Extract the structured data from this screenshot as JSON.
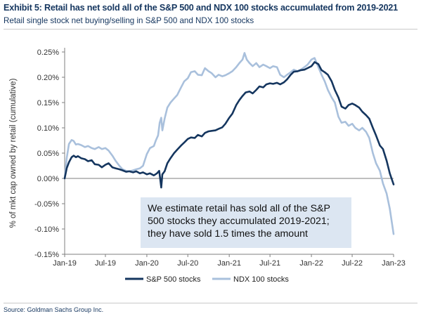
{
  "header": {
    "title": "Exhibit 5: Retail has net sold all of the S&P 500 and NDX 100 stocks accumulated from 2019-2021",
    "subtitle": "Retail single stock net buying/selling in S&P 500 and NDX 100 stocks"
  },
  "footer": {
    "source": "Source: Goldman Sachs Group Inc."
  },
  "chart_data": {
    "type": "line",
    "ylabel": "% of mkt cap owned by retail (cumulative)",
    "xlabel": "",
    "ylim": [
      -0.15,
      0.25
    ],
    "yticks": [
      -0.15,
      -0.1,
      -0.05,
      0.0,
      0.05,
      0.1,
      0.15,
      0.2,
      0.25
    ],
    "ytick_labels": [
      "-0.15%",
      "-0.10%",
      "-0.05%",
      "0.00%",
      "0.05%",
      "0.10%",
      "0.15%",
      "0.20%",
      "0.25%"
    ],
    "xlim": [
      "2019-01-01",
      "2023-01-01"
    ],
    "xticks": [
      "2019-01-01",
      "2019-07-01",
      "2020-01-01",
      "2020-07-01",
      "2021-01-01",
      "2021-07-01",
      "2022-01-01",
      "2022-07-01",
      "2023-01-01"
    ],
    "xtick_labels": [
      "Jan-19",
      "Jul-19",
      "Jan-20",
      "Jul-20",
      "Jan-21",
      "Jul-21",
      "Jan-22",
      "Jul-22",
      "Jan-23"
    ],
    "zero_line": true,
    "grid": false,
    "legend_position": "bottom",
    "annotation": {
      "lines": [
        "We estimate retail has sold all of the S&P",
        "500 stocks they accumulated 2019-2021;",
        "they have sold 1.5 times the amount"
      ],
      "background": "#dce6f2"
    },
    "series": [
      {
        "name": "S&P 500 stocks",
        "color": "#15365f",
        "points": [
          [
            "2019-01-01",
            0.0
          ],
          [
            "2019-01-10",
            0.02
          ],
          [
            "2019-01-20",
            0.032
          ],
          [
            "2019-02-01",
            0.042
          ],
          [
            "2019-02-10",
            0.045
          ],
          [
            "2019-02-20",
            0.042
          ],
          [
            "2019-03-01",
            0.044
          ],
          [
            "2019-03-15",
            0.04
          ],
          [
            "2019-04-01",
            0.038
          ],
          [
            "2019-04-15",
            0.034
          ],
          [
            "2019-05-01",
            0.036
          ],
          [
            "2019-05-15",
            0.028
          ],
          [
            "2019-06-01",
            0.027
          ],
          [
            "2019-06-15",
            0.022
          ],
          [
            "2019-07-01",
            0.027
          ],
          [
            "2019-07-15",
            0.03
          ],
          [
            "2019-08-01",
            0.022
          ],
          [
            "2019-08-15",
            0.02
          ],
          [
            "2019-09-01",
            0.018
          ],
          [
            "2019-09-15",
            0.016
          ],
          [
            "2019-10-01",
            0.013
          ],
          [
            "2019-10-15",
            0.014
          ],
          [
            "2019-11-01",
            0.012
          ],
          [
            "2019-11-15",
            0.014
          ],
          [
            "2019-12-01",
            0.01
          ],
          [
            "2019-12-15",
            0.012
          ],
          [
            "2020-01-01",
            0.008
          ],
          [
            "2020-01-15",
            0.01
          ],
          [
            "2020-02-01",
            0.006
          ],
          [
            "2020-02-15",
            0.01
          ],
          [
            "2020-02-25",
            0.015
          ],
          [
            "2020-03-01",
            -0.003
          ],
          [
            "2020-03-05",
            -0.018
          ],
          [
            "2020-03-10",
            0.008
          ],
          [
            "2020-03-20",
            0.014
          ],
          [
            "2020-04-01",
            0.03
          ],
          [
            "2020-04-15",
            0.04
          ],
          [
            "2020-05-01",
            0.05
          ],
          [
            "2020-05-15",
            0.057
          ],
          [
            "2020-06-01",
            0.065
          ],
          [
            "2020-06-15",
            0.071
          ],
          [
            "2020-07-01",
            0.078
          ],
          [
            "2020-07-15",
            0.081
          ],
          [
            "2020-08-01",
            0.08
          ],
          [
            "2020-08-15",
            0.086
          ],
          [
            "2020-09-01",
            0.083
          ],
          [
            "2020-09-15",
            0.09
          ],
          [
            "2020-10-01",
            0.093
          ],
          [
            "2020-10-15",
            0.094
          ],
          [
            "2020-11-01",
            0.095
          ],
          [
            "2020-11-15",
            0.098
          ],
          [
            "2020-12-01",
            0.101
          ],
          [
            "2020-12-15",
            0.108
          ],
          [
            "2021-01-01",
            0.12
          ],
          [
            "2021-01-15",
            0.128
          ],
          [
            "2021-02-01",
            0.145
          ],
          [
            "2021-02-15",
            0.155
          ],
          [
            "2021-03-01",
            0.163
          ],
          [
            "2021-03-15",
            0.17
          ],
          [
            "2021-04-01",
            0.172
          ],
          [
            "2021-04-15",
            0.168
          ],
          [
            "2021-05-01",
            0.175
          ],
          [
            "2021-05-15",
            0.182
          ],
          [
            "2021-06-01",
            0.18
          ],
          [
            "2021-06-15",
            0.186
          ],
          [
            "2021-07-01",
            0.188
          ],
          [
            "2021-07-15",
            0.187
          ],
          [
            "2021-08-01",
            0.189
          ],
          [
            "2021-08-15",
            0.186
          ],
          [
            "2021-09-01",
            0.19
          ],
          [
            "2021-09-15",
            0.196
          ],
          [
            "2021-10-01",
            0.205
          ],
          [
            "2021-10-15",
            0.211
          ],
          [
            "2021-11-01",
            0.212
          ],
          [
            "2021-11-15",
            0.214
          ],
          [
            "2021-12-01",
            0.215
          ],
          [
            "2021-12-15",
            0.218
          ],
          [
            "2022-01-01",
            0.222
          ],
          [
            "2022-01-15",
            0.23
          ],
          [
            "2022-02-01",
            0.226
          ],
          [
            "2022-02-15",
            0.214
          ],
          [
            "2022-03-01",
            0.21
          ],
          [
            "2022-03-15",
            0.205
          ],
          [
            "2022-04-01",
            0.192
          ],
          [
            "2022-04-15",
            0.175
          ],
          [
            "2022-05-01",
            0.16
          ],
          [
            "2022-05-15",
            0.142
          ],
          [
            "2022-06-01",
            0.138
          ],
          [
            "2022-06-15",
            0.145
          ],
          [
            "2022-07-01",
            0.148
          ],
          [
            "2022-07-15",
            0.145
          ],
          [
            "2022-08-01",
            0.14
          ],
          [
            "2022-08-15",
            0.132
          ],
          [
            "2022-09-01",
            0.125
          ],
          [
            "2022-09-15",
            0.118
          ],
          [
            "2022-10-01",
            0.1
          ],
          [
            "2022-10-15",
            0.085
          ],
          [
            "2022-11-01",
            0.065
          ],
          [
            "2022-11-15",
            0.058
          ],
          [
            "2022-12-01",
            0.035
          ],
          [
            "2022-12-15",
            0.01
          ],
          [
            "2023-01-01",
            -0.012
          ]
        ]
      },
      {
        "name": "NDX 100 stocks",
        "color": "#a9c0dc",
        "points": [
          [
            "2019-01-01",
            0.0
          ],
          [
            "2019-01-10",
            0.04
          ],
          [
            "2019-01-20",
            0.068
          ],
          [
            "2019-02-01",
            0.076
          ],
          [
            "2019-02-10",
            0.074
          ],
          [
            "2019-02-20",
            0.067
          ],
          [
            "2019-03-01",
            0.068
          ],
          [
            "2019-03-15",
            0.066
          ],
          [
            "2019-04-01",
            0.062
          ],
          [
            "2019-04-15",
            0.064
          ],
          [
            "2019-05-01",
            0.06
          ],
          [
            "2019-05-15",
            0.058
          ],
          [
            "2019-06-01",
            0.062
          ],
          [
            "2019-06-15",
            0.058
          ],
          [
            "2019-07-01",
            0.06
          ],
          [
            "2019-07-15",
            0.055
          ],
          [
            "2019-08-01",
            0.045
          ],
          [
            "2019-08-15",
            0.035
          ],
          [
            "2019-09-01",
            0.025
          ],
          [
            "2019-09-15",
            0.018
          ],
          [
            "2019-10-01",
            0.015
          ],
          [
            "2019-10-15",
            0.014
          ],
          [
            "2019-11-01",
            0.016
          ],
          [
            "2019-11-15",
            0.018
          ],
          [
            "2019-12-01",
            0.02
          ],
          [
            "2019-12-15",
            0.025
          ],
          [
            "2020-01-01",
            0.048
          ],
          [
            "2020-01-15",
            0.06
          ],
          [
            "2020-02-01",
            0.064
          ],
          [
            "2020-02-10",
            0.075
          ],
          [
            "2020-02-20",
            0.085
          ],
          [
            "2020-02-27",
            0.11
          ],
          [
            "2020-03-05",
            0.12
          ],
          [
            "2020-03-10",
            0.095
          ],
          [
            "2020-03-20",
            0.118
          ],
          [
            "2020-04-01",
            0.14
          ],
          [
            "2020-04-15",
            0.15
          ],
          [
            "2020-05-01",
            0.158
          ],
          [
            "2020-05-15",
            0.165
          ],
          [
            "2020-06-01",
            0.18
          ],
          [
            "2020-06-15",
            0.192
          ],
          [
            "2020-07-01",
            0.198
          ],
          [
            "2020-07-15",
            0.21
          ],
          [
            "2020-08-01",
            0.212
          ],
          [
            "2020-08-15",
            0.205
          ],
          [
            "2020-09-01",
            0.204
          ],
          [
            "2020-09-15",
            0.218
          ],
          [
            "2020-10-01",
            0.212
          ],
          [
            "2020-10-15",
            0.208
          ],
          [
            "2020-11-01",
            0.2
          ],
          [
            "2020-11-15",
            0.205
          ],
          [
            "2020-12-01",
            0.202
          ],
          [
            "2020-12-15",
            0.204
          ],
          [
            "2021-01-01",
            0.208
          ],
          [
            "2021-01-15",
            0.212
          ],
          [
            "2021-02-01",
            0.22
          ],
          [
            "2021-02-15",
            0.228
          ],
          [
            "2021-03-01",
            0.235
          ],
          [
            "2021-03-10",
            0.248
          ],
          [
            "2021-03-20",
            0.235
          ],
          [
            "2021-04-01",
            0.228
          ],
          [
            "2021-04-15",
            0.222
          ],
          [
            "2021-05-01",
            0.228
          ],
          [
            "2021-05-15",
            0.22
          ],
          [
            "2021-06-01",
            0.225
          ],
          [
            "2021-06-15",
            0.222
          ],
          [
            "2021-07-01",
            0.218
          ],
          [
            "2021-07-15",
            0.222
          ],
          [
            "2021-08-01",
            0.22
          ],
          [
            "2021-08-15",
            0.205
          ],
          [
            "2021-09-01",
            0.2
          ],
          [
            "2021-09-15",
            0.205
          ],
          [
            "2021-10-01",
            0.21
          ],
          [
            "2021-10-15",
            0.215
          ],
          [
            "2021-11-01",
            0.212
          ],
          [
            "2021-11-15",
            0.215
          ],
          [
            "2021-12-01",
            0.22
          ],
          [
            "2021-12-15",
            0.225
          ],
          [
            "2022-01-01",
            0.235
          ],
          [
            "2022-01-15",
            0.238
          ],
          [
            "2022-02-01",
            0.22
          ],
          [
            "2022-02-15",
            0.205
          ],
          [
            "2022-03-01",
            0.192
          ],
          [
            "2022-03-15",
            0.175
          ],
          [
            "2022-04-01",
            0.16
          ],
          [
            "2022-04-15",
            0.15
          ],
          [
            "2022-05-01",
            0.122
          ],
          [
            "2022-05-15",
            0.11
          ],
          [
            "2022-06-01",
            0.112
          ],
          [
            "2022-06-15",
            0.104
          ],
          [
            "2022-07-01",
            0.108
          ],
          [
            "2022-07-15",
            0.1
          ],
          [
            "2022-08-01",
            0.095
          ],
          [
            "2022-08-15",
            0.1
          ],
          [
            "2022-09-01",
            0.092
          ],
          [
            "2022-09-15",
            0.08
          ],
          [
            "2022-10-01",
            0.05
          ],
          [
            "2022-10-15",
            0.03
          ],
          [
            "2022-11-01",
            0.015
          ],
          [
            "2022-11-15",
            -0.01
          ],
          [
            "2022-12-01",
            -0.03
          ],
          [
            "2022-12-15",
            -0.06
          ],
          [
            "2023-01-01",
            -0.11
          ]
        ]
      }
    ]
  }
}
